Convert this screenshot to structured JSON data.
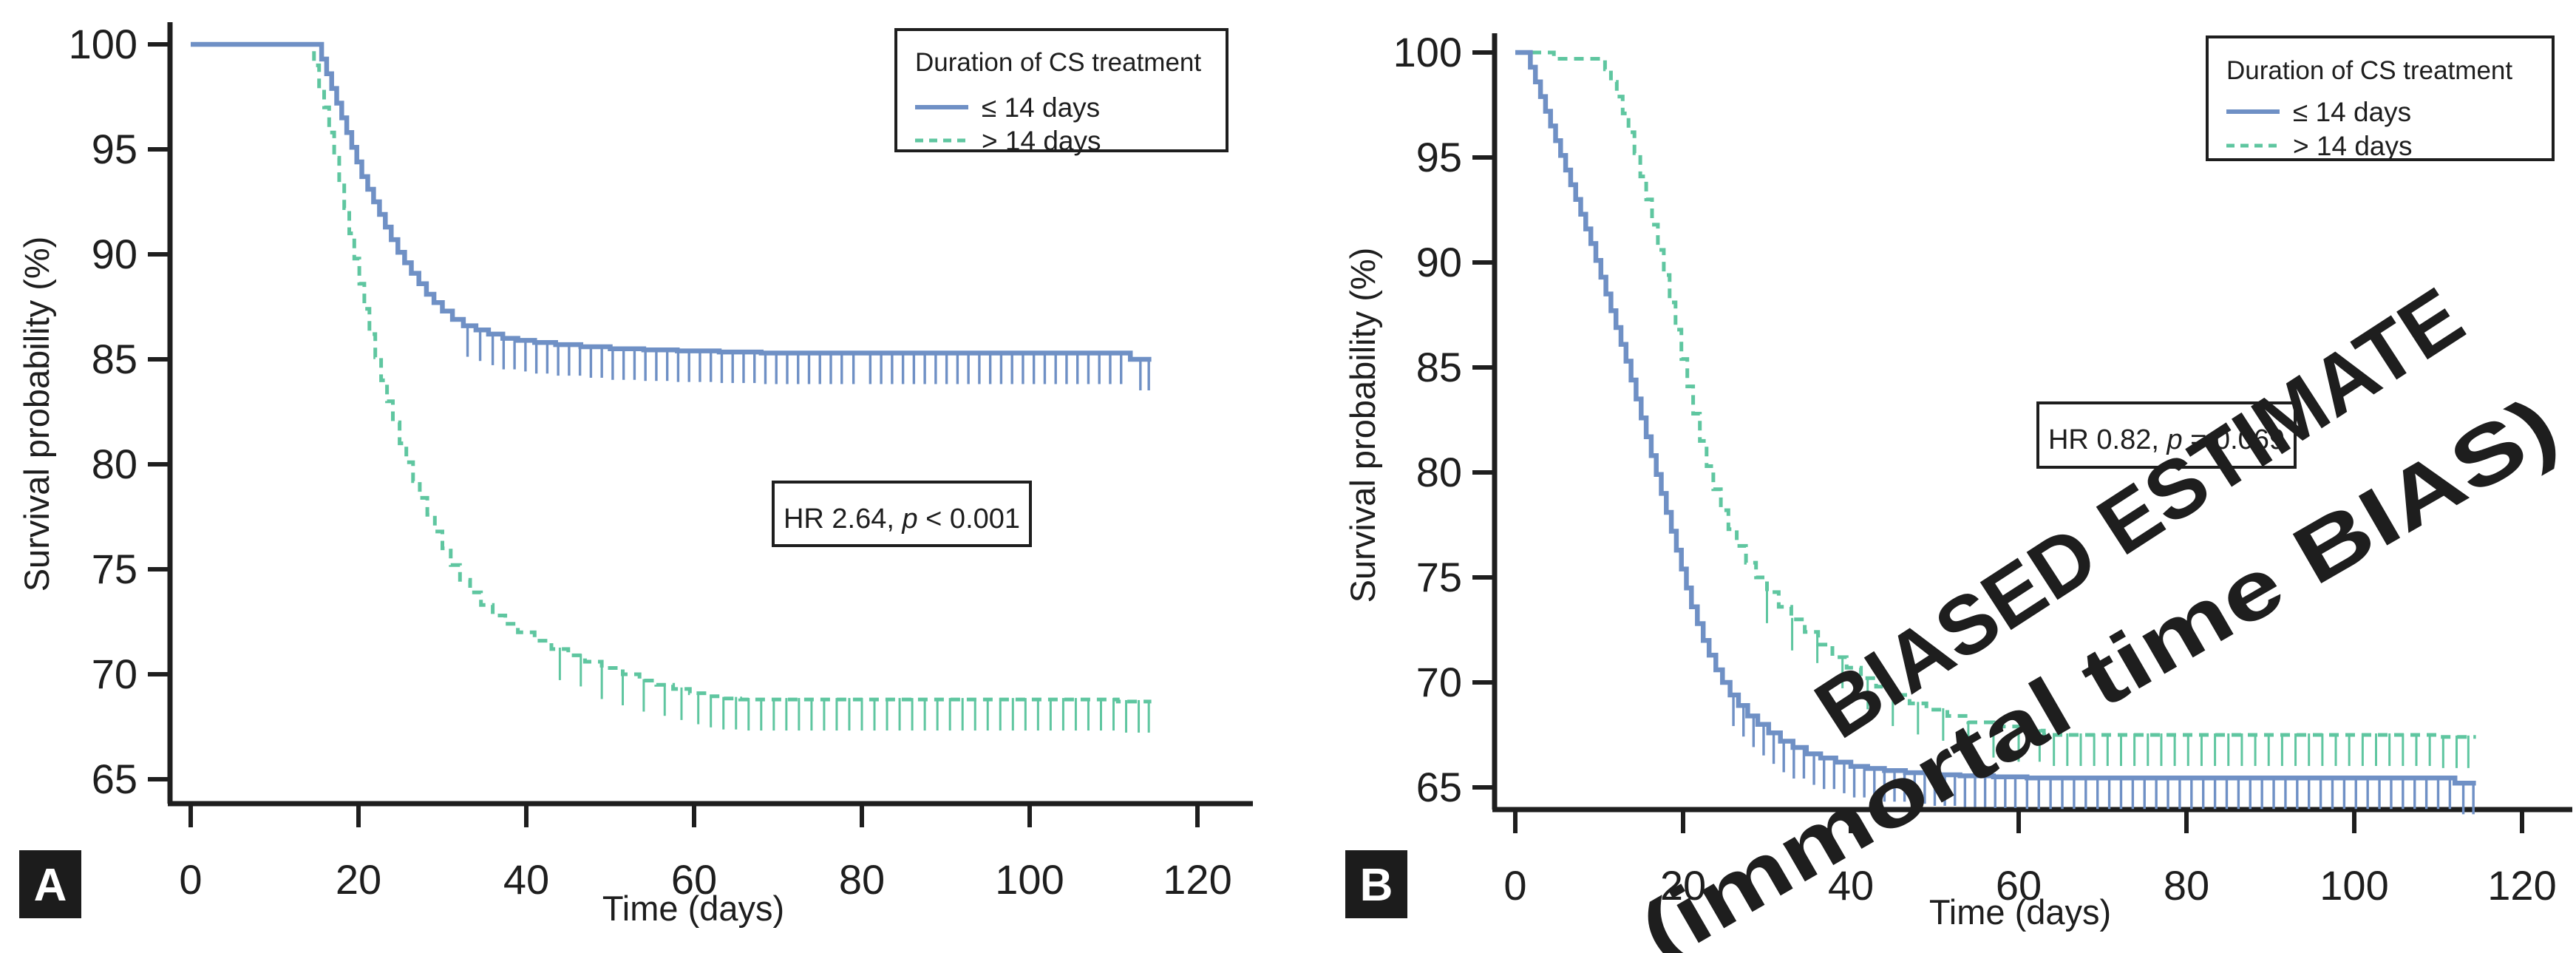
{
  "figure": {
    "background": "#ffffff",
    "axis_color": "#1e1e1e"
  },
  "chart_data": [
    {
      "panel_label": "A",
      "type": "line",
      "subtype": "kaplan-meier-step",
      "xlabel": "Time (days)",
      "ylabel": "Survival probability (%)",
      "xlim": [
        0,
        120
      ],
      "xticks": [
        0,
        20,
        40,
        60,
        80,
        100,
        120
      ],
      "ylim": [
        65,
        100
      ],
      "yticks": [
        65,
        70,
        75,
        80,
        85,
        90,
        95,
        100
      ],
      "grid": false,
      "legend": {
        "title": "Duration of CS treatment",
        "position": "top-right"
      },
      "annotation": {
        "prefix": "HR 2.64, ",
        "p_symbol": "p",
        "suffix": " < 0.001"
      },
      "series": [
        {
          "name": "≤ 14 days",
          "line_style": "solid",
          "color": "#6F90C5",
          "points": [
            [
              0,
              100
            ],
            [
              15,
              100
            ],
            [
              15.6,
              99.3
            ],
            [
              16.2,
              98.6
            ],
            [
              16.8,
              97.9
            ],
            [
              17.4,
              97.2
            ],
            [
              18,
              96.5
            ],
            [
              18.6,
              95.8
            ],
            [
              19.2,
              95.1
            ],
            [
              19.8,
              94.4
            ],
            [
              20.4,
              93.7
            ],
            [
              21.1,
              93.1
            ],
            [
              21.8,
              92.5
            ],
            [
              22.5,
              91.9
            ],
            [
              23.2,
              91.3
            ],
            [
              23.9,
              90.7
            ],
            [
              24.7,
              90.1
            ],
            [
              25.5,
              89.6
            ],
            [
              26.3,
              89.1
            ],
            [
              27.2,
              88.6
            ],
            [
              28.1,
              88.1
            ],
            [
              29,
              87.7
            ],
            [
              30,
              87.3
            ],
            [
              31.2,
              86.9
            ],
            [
              32.5,
              86.6
            ],
            [
              34,
              86.4
            ],
            [
              35.5,
              86.2
            ],
            [
              37.2,
              86.0
            ],
            [
              39,
              85.9
            ],
            [
              41,
              85.8
            ],
            [
              43.5,
              85.7
            ],
            [
              46.5,
              85.6
            ],
            [
              50,
              85.5
            ],
            [
              54,
              85.45
            ],
            [
              58,
              85.4
            ],
            [
              63,
              85.35
            ],
            [
              68,
              85.3
            ],
            [
              112,
              85.0
            ],
            [
              114.5,
              85.0
            ]
          ],
          "censor_days": [
            33,
            34.5,
            36,
            37.3,
            38.6,
            39.9,
            41.2,
            42.5,
            43.8,
            45.1,
            46.4,
            47.7,
            49,
            50.3,
            51.6,
            52.9,
            54.2,
            55.5,
            56.8,
            58.1,
            59.4,
            60.7,
            62,
            63.3,
            64.6,
            65.9,
            67.2,
            68.5,
            69.8,
            71.1,
            72.4,
            73.7,
            75,
            76.3,
            77.6,
            79,
            81,
            82.3,
            83.6,
            84.9,
            86.2,
            87.5,
            88.8,
            90.1,
            91.4,
            92.7,
            94,
            95.3,
            96.6,
            97.9,
            99.2,
            100.5,
            101.8,
            103.1,
            104.4,
            105.7,
            107,
            108.3,
            109.6,
            110.9,
            113.2,
            114.2
          ]
        },
        {
          "name": "> 14 days",
          "line_style": "dashed",
          "color": "#5FC6A0",
          "points": [
            [
              0,
              100
            ],
            [
              14,
              100
            ],
            [
              14.7,
              99
            ],
            [
              15.3,
              98
            ],
            [
              15.9,
              97
            ],
            [
              16.5,
              95.8
            ],
            [
              17.1,
              94.6
            ],
            [
              17.7,
              93.4
            ],
            [
              18.3,
              92.2
            ],
            [
              18.9,
              91
            ],
            [
              19.5,
              89.8
            ],
            [
              20.1,
              88.6
            ],
            [
              20.7,
              87.4
            ],
            [
              21.3,
              86.2
            ],
            [
              22,
              85.1
            ],
            [
              22.7,
              84
            ],
            [
              23.4,
              83
            ],
            [
              24.1,
              82
            ],
            [
              24.9,
              81
            ],
            [
              25.7,
              80.1
            ],
            [
              26.5,
              79.2
            ],
            [
              27.3,
              78.4
            ],
            [
              28.2,
              77.6
            ],
            [
              29.1,
              76.8
            ],
            [
              30,
              76
            ],
            [
              31,
              75.2
            ],
            [
              32.1,
              74.5
            ],
            [
              33.3,
              73.9
            ],
            [
              34.6,
              73.3
            ],
            [
              36,
              72.8
            ],
            [
              37.5,
              72.4
            ],
            [
              39,
              72
            ],
            [
              41,
              71.6
            ],
            [
              43,
              71.2
            ],
            [
              45,
              70.9
            ],
            [
              47,
              70.6
            ],
            [
              49,
              70.3
            ],
            [
              51.5,
              70
            ],
            [
              53.5,
              69.7
            ],
            [
              55.5,
              69.5
            ],
            [
              57.5,
              69.3
            ],
            [
              59.5,
              69.1
            ],
            [
              61.5,
              68.95
            ],
            [
              63.5,
              68.85
            ],
            [
              65.5,
              68.8
            ],
            [
              109,
              68.8
            ],
            [
              110.5,
              68.7
            ],
            [
              114.5,
              68.7
            ]
          ],
          "censor_days": [
            44,
            46.5,
            49,
            51.5,
            54,
            56.5,
            58.5,
            60.5,
            62,
            63.5,
            65,
            66.5,
            68,
            69.5,
            71,
            72.5,
            74,
            75.5,
            77,
            78.5,
            80,
            81.5,
            83,
            84.5,
            86,
            87.5,
            89,
            90.5,
            92,
            93.5,
            95,
            96.5,
            98,
            99.5,
            101,
            102.5,
            104,
            105.5,
            107,
            108.5,
            110,
            111.5,
            113,
            114.2
          ]
        }
      ]
    },
    {
      "panel_label": "B",
      "type": "line",
      "subtype": "kaplan-meier-step",
      "xlabel": "Time (days)",
      "ylabel": "Survival probability (%)",
      "xlim": [
        0,
        120
      ],
      "xticks": [
        0,
        20,
        40,
        60,
        80,
        100,
        120
      ],
      "ylim": [
        65,
        100
      ],
      "yticks": [
        65,
        70,
        75,
        80,
        85,
        90,
        95,
        100
      ],
      "grid": false,
      "legend": {
        "title": "Duration of CS treatment",
        "position": "top-right"
      },
      "annotation": {
        "prefix": "HR 0.82, ",
        "p_symbol": "p",
        "suffix": " = 0.069"
      },
      "watermark": {
        "lines": [
          "BIASED ESTIMATE",
          "(immortal time BIAS)"
        ],
        "color": "#CE3A28"
      },
      "series": [
        {
          "name": "≤ 14 days",
          "line_style": "solid",
          "color": "#6F90C5",
          "points": [
            [
              0,
              100
            ],
            [
              1.2,
              100
            ],
            [
              1.8,
              99.3
            ],
            [
              2.4,
              98.6
            ],
            [
              3,
              97.9
            ],
            [
              3.6,
              97.2
            ],
            [
              4.2,
              96.5
            ],
            [
              4.8,
              95.8
            ],
            [
              5.4,
              95.1
            ],
            [
              6,
              94.4
            ],
            [
              6.6,
              93.7
            ],
            [
              7.2,
              93
            ],
            [
              7.8,
              92.3
            ],
            [
              8.4,
              91.6
            ],
            [
              9,
              90.9
            ],
            [
              9.6,
              90.1
            ],
            [
              10.2,
              89.3
            ],
            [
              10.8,
              88.5
            ],
            [
              11.4,
              87.7
            ],
            [
              12,
              86.9
            ],
            [
              12.6,
              86.1
            ],
            [
              13.2,
              85.3
            ],
            [
              13.8,
              84.4
            ],
            [
              14.4,
              83.5
            ],
            [
              15,
              82.6
            ],
            [
              15.6,
              81.7
            ],
            [
              16.2,
              80.8
            ],
            [
              16.8,
              79.9
            ],
            [
              17.4,
              79
            ],
            [
              18,
              78.1
            ],
            [
              18.6,
              77.2
            ],
            [
              19.2,
              76.3
            ],
            [
              19.8,
              75.4
            ],
            [
              20.4,
              74.5
            ],
            [
              21,
              73.6
            ],
            [
              21.7,
              72.8
            ],
            [
              22.4,
              72
            ],
            [
              23.1,
              71.3
            ],
            [
              23.9,
              70.6
            ],
            [
              24.7,
              70
            ],
            [
              25.6,
              69.4
            ],
            [
              26.6,
              68.9
            ],
            [
              27.7,
              68.4
            ],
            [
              28.9,
              68
            ],
            [
              30.2,
              67.6
            ],
            [
              31.6,
              67.2
            ],
            [
              33.1,
              66.9
            ],
            [
              34.7,
              66.6
            ],
            [
              36.4,
              66.4
            ],
            [
              38.2,
              66.2
            ],
            [
              40,
              66
            ],
            [
              42,
              65.9
            ],
            [
              44,
              65.8
            ],
            [
              46.5,
              65.7
            ],
            [
              49.5,
              65.6
            ],
            [
              53,
              65.55
            ],
            [
              57,
              65.5
            ],
            [
              61,
              65.45
            ],
            [
              112,
              65.2
            ],
            [
              114.5,
              65.2
            ]
          ],
          "censor_days": [
            26,
            27.2,
            28.4,
            29.6,
            30.8,
            32,
            33.2,
            34.4,
            35.6,
            36.8,
            38,
            39.2,
            40.4,
            41.6,
            42.8,
            44,
            45.2,
            46.4,
            47.6,
            48.8,
            50,
            51.2,
            52.4,
            53.6,
            54.8,
            56,
            57.2,
            58.4,
            59.6,
            61,
            62.4,
            63.8,
            65.2,
            66.6,
            68,
            69.4,
            70.8,
            72.2,
            73.6,
            75,
            76.4,
            77.8,
            79.2,
            80.6,
            82,
            83.4,
            84.8,
            86.2,
            87.6,
            89,
            90.4,
            91.8,
            93.2,
            94.6,
            96,
            97.4,
            98.8,
            100.2,
            101.6,
            103,
            104.4,
            105.8,
            107.2,
            108.6,
            110,
            111.4,
            113,
            114.2
          ]
        },
        {
          "name": "> 14 days",
          "line_style": "dashed",
          "color": "#5FC6A0",
          "points": [
            [
              0,
              100
            ],
            [
              4,
              100
            ],
            [
              4.6,
              99.7
            ],
            [
              10,
              99.7
            ],
            [
              10.7,
              99.2
            ],
            [
              11.4,
              98.6
            ],
            [
              12.1,
              97.9
            ],
            [
              12.8,
              97.1
            ],
            [
              13.5,
              96.2
            ],
            [
              14.2,
              95.2
            ],
            [
              14.9,
              94.1
            ],
            [
              15.6,
              93
            ],
            [
              16.3,
              91.8
            ],
            [
              17,
              90.6
            ],
            [
              17.7,
              89.4
            ],
            [
              18.4,
              88.1
            ],
            [
              19.1,
              86.8
            ],
            [
              19.8,
              85.4
            ],
            [
              20.5,
              84.1
            ],
            [
              21.2,
              82.8
            ],
            [
              22,
              81.5
            ],
            [
              22.8,
              80.3
            ],
            [
              23.6,
              79.2
            ],
            [
              24.5,
              78.2
            ],
            [
              25.4,
              77.3
            ],
            [
              26.4,
              76.5
            ],
            [
              27.5,
              75.7
            ],
            [
              28.7,
              75
            ],
            [
              30,
              74.3
            ],
            [
              31.4,
              73.6
            ],
            [
              32.9,
              73
            ],
            [
              34.5,
              72.4
            ],
            [
              36.1,
              71.8
            ],
            [
              37.8,
              71.2
            ],
            [
              39.5,
              70.7
            ],
            [
              41.2,
              70.2
            ],
            [
              43,
              69.8
            ],
            [
              45,
              69.4
            ],
            [
              47,
              69
            ],
            [
              49,
              68.7
            ],
            [
              51.5,
              68.4
            ],
            [
              54,
              68.1
            ],
            [
              57,
              67.9
            ],
            [
              60,
              67.7
            ],
            [
              63,
              67.5
            ],
            [
              108,
              67.5
            ],
            [
              110,
              67.4
            ],
            [
              114.5,
              67.4
            ]
          ],
          "censor_days": [
            30,
            33,
            36,
            39,
            42,
            45,
            48,
            51,
            54,
            57,
            60,
            62.5,
            64.2,
            65.8,
            67.4,
            69,
            70.6,
            72.2,
            73.8,
            75.4,
            77,
            78.6,
            80.2,
            81.8,
            83.4,
            85,
            86.6,
            88.2,
            89.8,
            91.4,
            93,
            94.6,
            96.2,
            97.8,
            99.4,
            101,
            102.6,
            104.2,
            105.8,
            107.4,
            109,
            110.6,
            112.2,
            113.6
          ]
        }
      ]
    }
  ]
}
